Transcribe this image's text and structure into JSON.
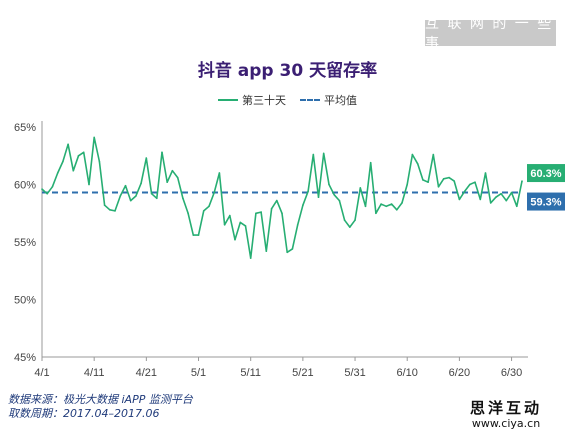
{
  "watermark": "互 联 网 的 一 些 事",
  "brand": {
    "name": "思洋互动",
    "url": "www.ciya.cn"
  },
  "source_lines": [
    "数据来源：极光大数据 iAPP 监测平台",
    "取数周期：2017.04–2017.06"
  ],
  "colors": {
    "series": "#27ae73",
    "average": "#2e6fad",
    "title": "#3b1f73"
  },
  "chart_data": {
    "type": "line",
    "title": "抖音 app 30 天留存率",
    "x_tick_labels": [
      "4/1",
      "4/11",
      "4/21",
      "5/1",
      "5/11",
      "5/21",
      "5/31",
      "6/10",
      "6/20",
      "6/30"
    ],
    "ylim": [
      45,
      65
    ],
    "y_ticks": [
      45,
      50,
      55,
      60,
      65
    ],
    "y_tick_labels": [
      "45%",
      "50%",
      "55%",
      "60%",
      "65%"
    ],
    "grid": false,
    "legend_position": "top-center",
    "series": [
      {
        "name": "第三十天",
        "style": "solid",
        "values": [
          59.6,
          59.2,
          59.8,
          61.0,
          62.0,
          63.5,
          61.2,
          62.5,
          62.8,
          60.0,
          64.1,
          62.0,
          58.2,
          57.8,
          57.7,
          59.0,
          59.9,
          58.6,
          59.0,
          60.1,
          62.3,
          59.2,
          58.8,
          62.8,
          60.2,
          61.2,
          60.6,
          58.8,
          57.5,
          55.6,
          55.6,
          57.7,
          58.1,
          59.3,
          61.0,
          56.5,
          57.3,
          55.2,
          56.7,
          56.4,
          53.6,
          57.5,
          57.6,
          54.2,
          57.9,
          58.6,
          57.5,
          54.1,
          54.4,
          56.5,
          58.2,
          59.4,
          62.6,
          58.9,
          62.7,
          60.0,
          59.1,
          58.6,
          56.9,
          56.3,
          56.9,
          59.7,
          58.1,
          61.9,
          57.5,
          58.3,
          58.1,
          58.3,
          57.8,
          58.4,
          60.0,
          62.6,
          61.8,
          60.4,
          60.2,
          62.6,
          59.8,
          60.5,
          60.6,
          60.3,
          58.7,
          59.4,
          60.0,
          60.2,
          58.7,
          61.0,
          58.4,
          58.9,
          59.2,
          58.6,
          59.3,
          58.1,
          60.3
        ]
      },
      {
        "name": "平均值",
        "style": "dashed",
        "values": [
          59.3
        ]
      }
    ],
    "end_labels": [
      "60.3%",
      "59.3%"
    ]
  }
}
